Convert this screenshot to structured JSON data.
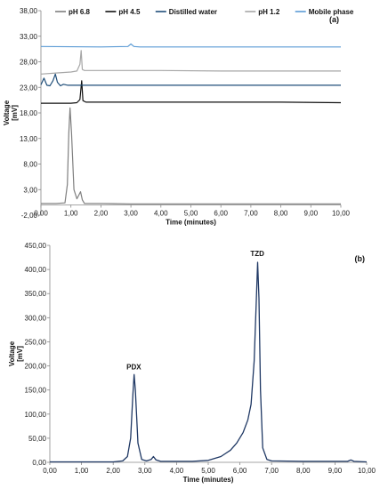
{
  "chart_data": [
    {
      "panel_label": "(a)",
      "type": "line",
      "xlabel": "Time (minutes)",
      "ylabel": "Voltage\n[mV]",
      "xlim": [
        0,
        10
      ],
      "ylim": [
        -2,
        38
      ],
      "xticks": [
        "0,00",
        "1,00",
        "2,00",
        "3,00",
        "4,00",
        "5,00",
        "6,00",
        "7,00",
        "8,00",
        "9,00",
        "10,00"
      ],
      "yticks": [
        "-2,00",
        "3,00",
        "8,00",
        "13,00",
        "18,00",
        "23,00",
        "28,00",
        "33,00",
        "38,00"
      ],
      "legend_position": "top",
      "series": [
        {
          "name": "pH 6.8",
          "color": "#7f7f7f",
          "x": [
            0.0,
            0.5,
            0.8,
            0.88,
            0.93,
            0.97,
            1.02,
            1.1,
            1.2,
            1.27,
            1.32,
            1.38,
            1.45,
            2.0,
            3.0,
            5.0,
            7.0,
            10.0
          ],
          "y": [
            0.3,
            0.3,
            0.4,
            4.0,
            14.0,
            19.0,
            14.0,
            3.0,
            1.2,
            2.0,
            2.6,
            1.0,
            0.3,
            0.3,
            0.2,
            0.2,
            0.2,
            0.2
          ]
        },
        {
          "name": "pH 4.5",
          "color": "#111111",
          "x": [
            0.0,
            0.6,
            1.0,
            1.2,
            1.3,
            1.36,
            1.4,
            1.5,
            2.0,
            4.0,
            6.0,
            8.0,
            10.0
          ],
          "y": [
            19.9,
            19.9,
            19.9,
            20.0,
            20.6,
            24.3,
            20.4,
            20.1,
            20.1,
            20.1,
            20.1,
            20.1,
            20.0
          ]
        },
        {
          "name": "Distilled water",
          "color": "#1f4e79",
          "x": [
            0.0,
            0.1,
            0.2,
            0.3,
            0.4,
            0.48,
            0.55,
            0.65,
            0.75,
            0.9,
            1.0,
            2.0,
            4.0,
            6.0,
            8.0,
            10.0
          ],
          "y": [
            23.5,
            24.8,
            23.4,
            23.3,
            24.3,
            25.6,
            24.0,
            23.3,
            23.6,
            23.4,
            23.4,
            23.4,
            23.4,
            23.4,
            23.4,
            23.4
          ]
        },
        {
          "name": "pH 1.2",
          "color": "#a6a6a6",
          "x": [
            0.0,
            0.5,
            1.0,
            1.2,
            1.3,
            1.34,
            1.38,
            1.45,
            2.0,
            4.0,
            6.0,
            8.0,
            10.0
          ],
          "y": [
            25.6,
            25.8,
            26.0,
            26.2,
            27.5,
            30.2,
            26.5,
            26.3,
            26.3,
            26.3,
            26.2,
            26.2,
            26.2
          ]
        },
        {
          "name": "Mobile phase",
          "color": "#5b9bd5",
          "x": [
            0.0,
            2.0,
            2.9,
            3.0,
            3.1,
            3.3,
            5.0,
            7.0,
            10.0
          ],
          "y": [
            31.0,
            30.9,
            31.0,
            31.5,
            31.0,
            30.9,
            30.9,
            30.9,
            30.9
          ]
        }
      ]
    },
    {
      "panel_label": "(b)",
      "type": "line",
      "xlabel": "Time (minutes)",
      "ylabel": "Voltage\n[mV]",
      "xlim": [
        0,
        10
      ],
      "ylim": [
        0,
        450
      ],
      "xticks": [
        "0,00",
        "1,00",
        "2,00",
        "3,00",
        "4,00",
        "5,00",
        "6,00",
        "7,00",
        "8,00",
        "9,00",
        "10,00"
      ],
      "yticks": [
        "0,00",
        "50,00",
        "100,00",
        "150,00",
        "200,00",
        "250,00",
        "300,00",
        "350,00",
        "400,00",
        "450,00"
      ],
      "annotations": [
        {
          "text": "PDX",
          "x": 2.65,
          "y": 193
        },
        {
          "text": "TZD",
          "x": 6.55,
          "y": 428
        }
      ],
      "series": [
        {
          "name": "",
          "color": "#1f3864",
          "x": [
            0.0,
            2.0,
            2.3,
            2.45,
            2.55,
            2.62,
            2.66,
            2.7,
            2.78,
            2.9,
            3.05,
            3.2,
            3.27,
            3.35,
            3.5,
            4.0,
            4.5,
            5.0,
            5.4,
            5.7,
            5.9,
            6.1,
            6.25,
            6.35,
            6.45,
            6.52,
            6.56,
            6.6,
            6.65,
            6.72,
            6.85,
            7.0,
            8.0,
            9.4,
            9.5,
            9.6,
            10.0
          ],
          "y": [
            1,
            1,
            3,
            12,
            50,
            140,
            182,
            150,
            40,
            6,
            3,
            6,
            12,
            5,
            2,
            2,
            2,
            4,
            12,
            25,
            40,
            62,
            88,
            120,
            210,
            340,
            415,
            340,
            150,
            30,
            6,
            3,
            2,
            2,
            5,
            2,
            1
          ]
        }
      ]
    }
  ]
}
